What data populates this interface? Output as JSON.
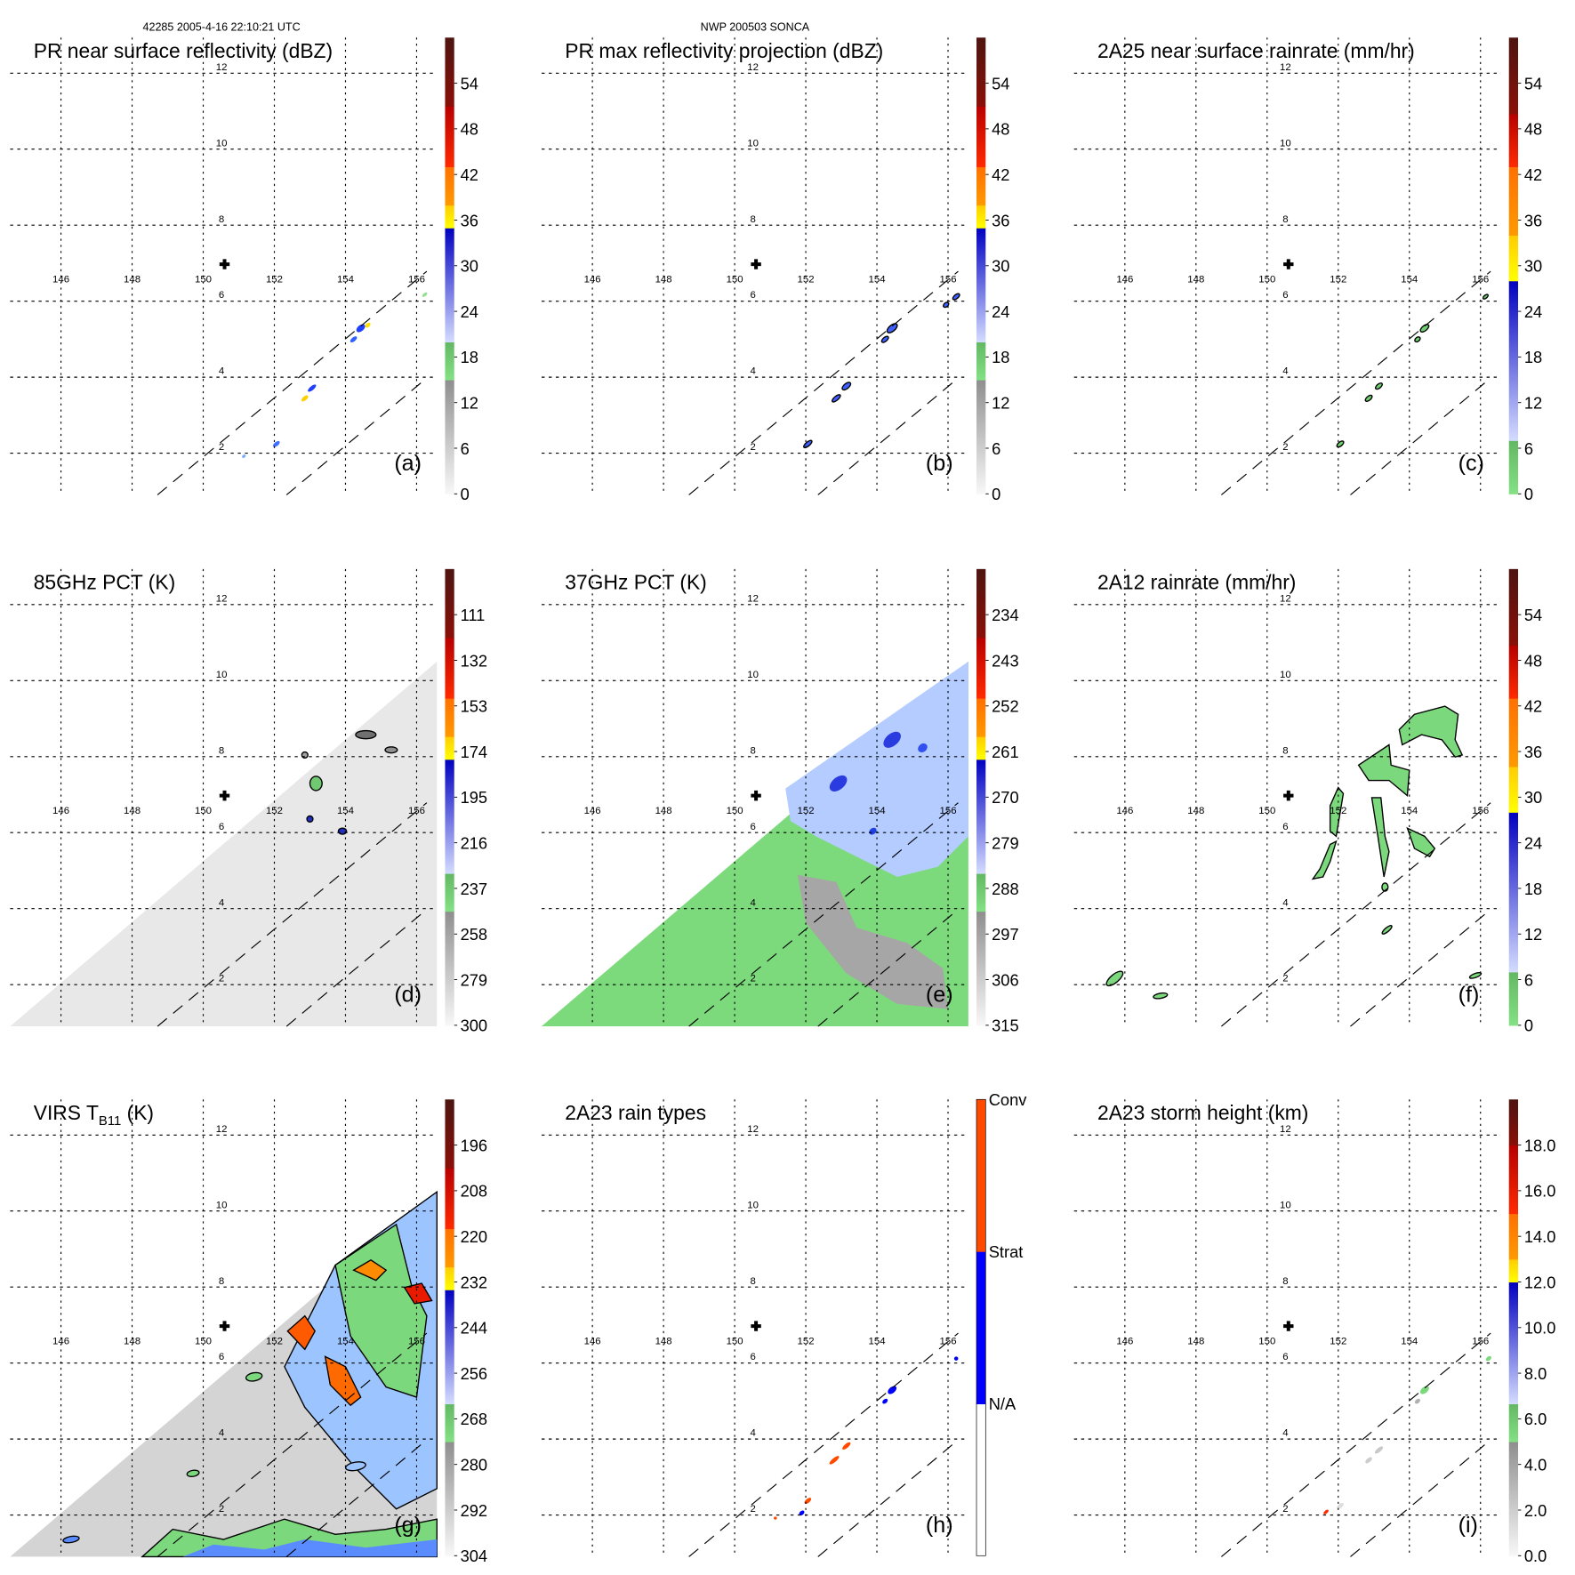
{
  "header": {
    "left": "42285 2005-4-16 22:10:21 UTC",
    "center": "NWP 200503 SONCA"
  },
  "grid": {
    "lon_labels": [
      "146",
      "148",
      "150",
      "152",
      "154",
      "156"
    ],
    "lat_labels": [
      "12",
      "10",
      "8",
      "6",
      "4",
      "2"
    ]
  },
  "colormaps": {
    "standard": [
      {
        "from": 0,
        "to": 0.25,
        "c0": "#f8f8f8",
        "c1": "#8e8e8e"
      },
      {
        "from": 0.25,
        "to": 0.333,
        "c0": "#84e184",
        "c1": "#62b862"
      },
      {
        "from": 0.333,
        "to": 0.583,
        "c0": "#d4dcff",
        "c1": "#0000c0"
      },
      {
        "from": 0.583,
        "to": 0.633,
        "c0": "#ffff00",
        "c1": "#ffcc00"
      },
      {
        "from": 0.633,
        "to": 0.717,
        "c0": "#ff9a00",
        "c1": "#ff7000"
      },
      {
        "from": 0.717,
        "to": 0.85,
        "c0": "#ff2a00",
        "c1": "#b80000"
      },
      {
        "from": 0.85,
        "to": 1,
        "c0": "#8a1008",
        "c1": "#4e1410"
      }
    ],
    "rain": [
      {
        "from": 0,
        "to": 0.117,
        "c0": "#84e184",
        "c1": "#62b862"
      },
      {
        "from": 0.117,
        "to": 0.467,
        "c0": "#d4dcff",
        "c1": "#0000c0"
      },
      {
        "from": 0.467,
        "to": 0.567,
        "c0": "#ffff00",
        "c1": "#ffcc00"
      },
      {
        "from": 0.567,
        "to": 0.717,
        "c0": "#ff9a00",
        "c1": "#ff7000"
      },
      {
        "from": 0.717,
        "to": 0.833,
        "c0": "#ff2a00",
        "c1": "#b80000"
      },
      {
        "from": 0.833,
        "to": 1,
        "c0": "#8a1008",
        "c1": "#4e1410"
      }
    ],
    "height": [
      {
        "from": 0,
        "to": 0.25,
        "c0": "#f8f8f8",
        "c1": "#8e8e8e"
      },
      {
        "from": 0.25,
        "to": 0.333,
        "c0": "#84e184",
        "c1": "#62b862"
      },
      {
        "from": 0.333,
        "to": 0.6,
        "c0": "#d4dcff",
        "c1": "#0000c0"
      },
      {
        "from": 0.6,
        "to": 0.65,
        "c0": "#ffff00",
        "c1": "#ffcc00"
      },
      {
        "from": 0.65,
        "to": 0.75,
        "c0": "#ff9a00",
        "c1": "#ff7000"
      },
      {
        "from": 0.75,
        "to": 0.9,
        "c0": "#ff2a00",
        "c1": "#b80000"
      },
      {
        "from": 0.9,
        "to": 1,
        "c0": "#8a1008",
        "c1": "#4e1410"
      }
    ],
    "raintype": [
      {
        "from": 0,
        "to": 0.333,
        "c0": "#ffffff",
        "c1": "#ffffff"
      },
      {
        "from": 0.333,
        "to": 0.667,
        "c0": "#0000ff",
        "c1": "#0000ff"
      },
      {
        "from": 0.667,
        "to": 1,
        "c0": "#ff4a00",
        "c1": "#ff4a00"
      }
    ]
  },
  "panels": [
    {
      "id": "a",
      "letter": "(a)",
      "title": "PR near surface reflectivity (dBZ)",
      "cmap": "standard",
      "cb_labels": [
        "0",
        "6",
        "12",
        "18",
        "24",
        "30",
        "36",
        "42",
        "48",
        "54"
      ]
    },
    {
      "id": "b",
      "letter": "(b)",
      "title": "PR max reflectivity projection (dBZ)",
      "cmap": "standard",
      "cb_labels": [
        "0",
        "6",
        "12",
        "18",
        "24",
        "30",
        "36",
        "42",
        "48",
        "54"
      ]
    },
    {
      "id": "c",
      "letter": "(c)",
      "title": "2A25 near surface rainrate (mm/hr)",
      "cmap": "rain",
      "cb_labels": [
        "0",
        "6",
        "12",
        "18",
        "24",
        "30",
        "36",
        "42",
        "48",
        "54"
      ]
    },
    {
      "id": "d",
      "letter": "(d)",
      "title": "85GHz PCT (K)",
      "cmap": "standard",
      "cb_labels": [
        "300",
        "279",
        "258",
        "237",
        "216",
        "195",
        "174",
        "153",
        "132",
        "111"
      ]
    },
    {
      "id": "e",
      "letter": "(e)",
      "title": "37GHz PCT (K)",
      "cmap": "standard",
      "cb_labels": [
        "315",
        "306",
        "297",
        "288",
        "279",
        "270",
        "261",
        "252",
        "243",
        "234"
      ]
    },
    {
      "id": "f",
      "letter": "(f)",
      "title": "2A12 rainrate (mm/hr)",
      "cmap": "rain",
      "cb_labels": [
        "0",
        "6",
        "12",
        "18",
        "24",
        "30",
        "36",
        "42",
        "48",
        "54"
      ]
    },
    {
      "id": "g",
      "letter": "(g)",
      "title": "VIRS T",
      "title_sub": "B11",
      "title_after": " (K)",
      "cmap": "standard",
      "cb_labels": [
        "304",
        "292",
        "280",
        "268",
        "256",
        "244",
        "232",
        "220",
        "208",
        "196"
      ]
    },
    {
      "id": "h",
      "letter": "(h)",
      "title": "2A23 rain types",
      "cmap": "raintype",
      "cb_categorical": [
        "N/A",
        "Strat",
        "Conv"
      ]
    },
    {
      "id": "i",
      "letter": "(i)",
      "title": "2A23 storm height (km)",
      "cmap": "height",
      "cb_labels": [
        "0.0",
        "2.0",
        "4.0",
        "6.0",
        "8.0",
        "10.0",
        "12.0",
        "14.0",
        "16.0",
        "18.0"
      ]
    }
  ]
}
